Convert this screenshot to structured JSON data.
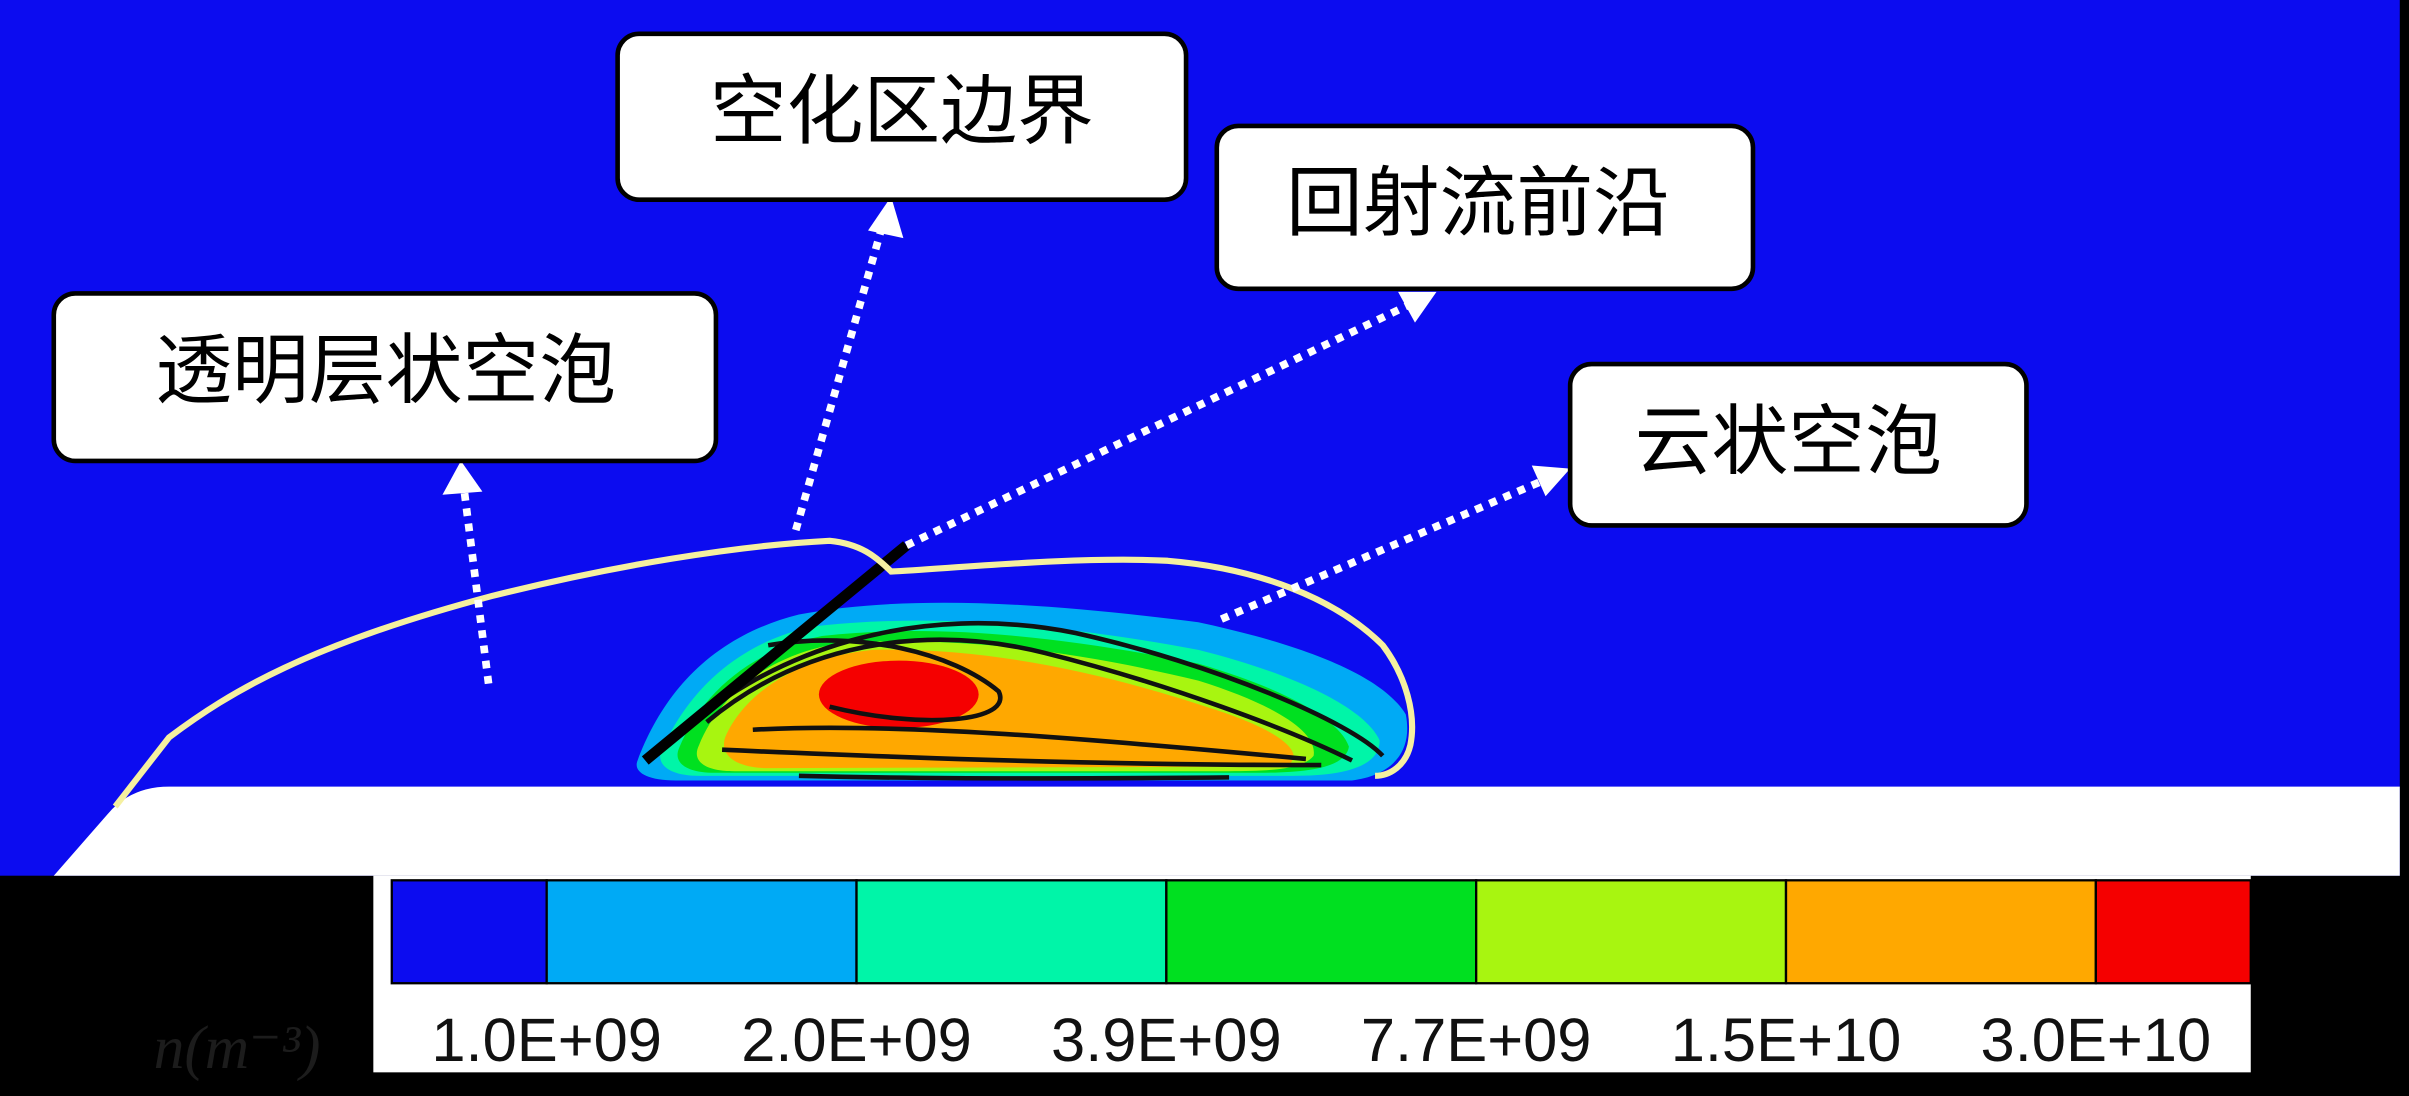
{
  "annotations": [
    {
      "label": "空化区边界"
    },
    {
      "label": "回射流前沿"
    },
    {
      "label": "透明层状空泡"
    },
    {
      "label": "云状空泡"
    }
  ],
  "colorbar": {
    "colors": [
      "#0c0cf0",
      "#00aaf5",
      "#00f5a8",
      "#00e020",
      "#a8f510",
      "#ffa800",
      "#f50000"
    ],
    "labels": [
      "1.0E+09",
      "2.0E+09",
      "3.9E+09",
      "7.7E+09",
      "1.5E+10",
      "3.0E+10"
    ],
    "unit": "n(m⁻³)"
  }
}
